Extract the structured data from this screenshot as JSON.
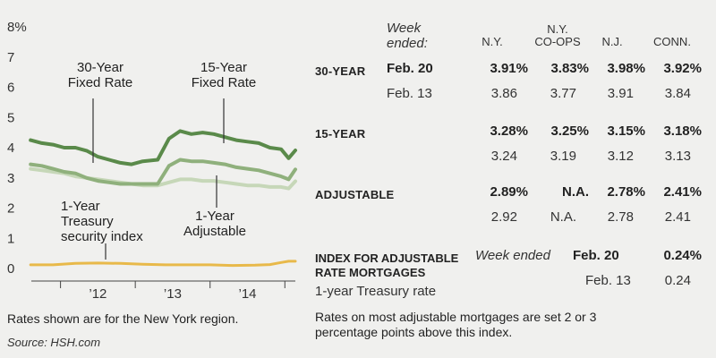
{
  "chart_data": {
    "type": "line",
    "ylim": [
      0,
      8
    ],
    "yticks": [
      "0",
      "1",
      "2",
      "3",
      "4",
      "5",
      "6",
      "7",
      "8%"
    ],
    "xlim": [
      2011.55,
      2015.2
    ],
    "xticks": [
      {
        "label": "’12",
        "x": 2012.5
      },
      {
        "label": "’13",
        "x": 2013.5
      },
      {
        "label": "’14",
        "x": 2014.5
      }
    ],
    "grid": false,
    "series": [
      {
        "name": "30-Year Fixed Rate",
        "color": "#5a8a4a",
        "points": [
          [
            2011.6,
            4.25
          ],
          [
            2011.75,
            4.15
          ],
          [
            2011.9,
            4.1
          ],
          [
            2012.05,
            4.0
          ],
          [
            2012.2,
            4.0
          ],
          [
            2012.35,
            3.9
          ],
          [
            2012.5,
            3.7
          ],
          [
            2012.65,
            3.6
          ],
          [
            2012.8,
            3.5
          ],
          [
            2012.95,
            3.45
          ],
          [
            2013.1,
            3.55
          ],
          [
            2013.3,
            3.6
          ],
          [
            2013.45,
            4.3
          ],
          [
            2013.6,
            4.55
          ],
          [
            2013.75,
            4.45
          ],
          [
            2013.9,
            4.5
          ],
          [
            2014.05,
            4.45
          ],
          [
            2014.2,
            4.35
          ],
          [
            2014.35,
            4.25
          ],
          [
            2014.5,
            4.2
          ],
          [
            2014.65,
            4.15
          ],
          [
            2014.8,
            4.0
          ],
          [
            2014.95,
            3.95
          ],
          [
            2015.05,
            3.65
          ],
          [
            2015.14,
            3.91
          ]
        ]
      },
      {
        "name": "15-Year Fixed Rate",
        "color": "#8fb07c",
        "points": [
          [
            2011.6,
            3.45
          ],
          [
            2011.75,
            3.4
          ],
          [
            2011.9,
            3.3
          ],
          [
            2012.05,
            3.2
          ],
          [
            2012.2,
            3.15
          ],
          [
            2012.35,
            3.0
          ],
          [
            2012.5,
            2.9
          ],
          [
            2012.65,
            2.85
          ],
          [
            2012.8,
            2.8
          ],
          [
            2012.95,
            2.8
          ],
          [
            2013.1,
            2.8
          ],
          [
            2013.3,
            2.8
          ],
          [
            2013.45,
            3.4
          ],
          [
            2013.6,
            3.6
          ],
          [
            2013.75,
            3.55
          ],
          [
            2013.9,
            3.55
          ],
          [
            2014.05,
            3.5
          ],
          [
            2014.2,
            3.45
          ],
          [
            2014.35,
            3.35
          ],
          [
            2014.5,
            3.3
          ],
          [
            2014.65,
            3.25
          ],
          [
            2014.8,
            3.15
          ],
          [
            2014.95,
            3.05
          ],
          [
            2015.05,
            2.95
          ],
          [
            2015.14,
            3.28
          ]
        ]
      },
      {
        "name": "1-Year Adjustable",
        "color": "#c6d7b8",
        "points": [
          [
            2011.6,
            3.3
          ],
          [
            2011.75,
            3.25
          ],
          [
            2011.9,
            3.2
          ],
          [
            2012.05,
            3.15
          ],
          [
            2012.2,
            3.05
          ],
          [
            2012.35,
            3.0
          ],
          [
            2012.5,
            2.95
          ],
          [
            2012.65,
            2.9
          ],
          [
            2012.8,
            2.85
          ],
          [
            2012.95,
            2.8
          ],
          [
            2013.1,
            2.75
          ],
          [
            2013.3,
            2.75
          ],
          [
            2013.45,
            2.85
          ],
          [
            2013.6,
            2.95
          ],
          [
            2013.75,
            2.95
          ],
          [
            2013.9,
            2.9
          ],
          [
            2014.05,
            2.9
          ],
          [
            2014.2,
            2.85
          ],
          [
            2014.35,
            2.8
          ],
          [
            2014.5,
            2.75
          ],
          [
            2014.65,
            2.75
          ],
          [
            2014.8,
            2.7
          ],
          [
            2014.95,
            2.7
          ],
          [
            2015.05,
            2.65
          ],
          [
            2015.14,
            2.89
          ]
        ]
      },
      {
        "name": "1-Year Treasury security index",
        "color": "#e8b94a",
        "points": [
          [
            2011.6,
            0.12
          ],
          [
            2011.9,
            0.12
          ],
          [
            2012.2,
            0.17
          ],
          [
            2012.5,
            0.18
          ],
          [
            2012.8,
            0.17
          ],
          [
            2013.1,
            0.14
          ],
          [
            2013.4,
            0.12
          ],
          [
            2013.7,
            0.12
          ],
          [
            2014.0,
            0.12
          ],
          [
            2014.3,
            0.1
          ],
          [
            2014.6,
            0.11
          ],
          [
            2014.8,
            0.13
          ],
          [
            2014.95,
            0.2
          ],
          [
            2015.05,
            0.24
          ],
          [
            2015.14,
            0.24
          ]
        ]
      }
    ],
    "annotations": [
      {
        "lines": [
          "30-Year",
          "Fixed Rate"
        ],
        "series": "30-Year Fixed Rate"
      },
      {
        "lines": [
          "15-Year",
          "Fixed Rate"
        ],
        "series": "15-Year Fixed Rate"
      },
      {
        "lines": [
          "1-Year",
          "Treasury",
          "security index"
        ],
        "series": "1-Year Treasury security index"
      },
      {
        "lines": [
          "1-Year",
          "Adjustable"
        ],
        "series": "1-Year Adjustable"
      }
    ]
  },
  "chart_note": "Rates shown are for the New York region.",
  "source": "Source: HSH.com",
  "table": {
    "header": {
      "week_ended_line1": "Week",
      "week_ended_line2": "ended:",
      "ny": "N.Y.",
      "coops_line1": "N.Y.",
      "coops_line2": "CO-OPS",
      "nj": "N.J.",
      "conn": "CONN."
    },
    "rows": [
      {
        "label": "30-YEAR",
        "current": {
          "week": "Feb. 20",
          "values": [
            "3.91%",
            "3.83%",
            "3.98%",
            "3.92%"
          ]
        },
        "previous": {
          "week": "Feb. 13",
          "values": [
            "3.86",
            "3.77",
            "3.91",
            "3.84"
          ]
        }
      },
      {
        "label": "15-YEAR",
        "current": {
          "week": "",
          "values": [
            "3.28%",
            "3.25%",
            "3.15%",
            "3.18%"
          ]
        },
        "previous": {
          "week": "",
          "values": [
            "3.24",
            "3.19",
            "3.12",
            "3.13"
          ]
        }
      },
      {
        "label": "ADJUSTABLE",
        "current": {
          "week": "",
          "values": [
            "2.89%",
            "N.A.",
            "2.78%",
            "2.41%"
          ]
        },
        "previous": {
          "week": "",
          "values": [
            "2.92",
            "N.A.",
            "2.78",
            "2.41"
          ]
        }
      }
    ],
    "index": {
      "title_line1": "INDEX FOR ADJUSTABLE",
      "title_line2": "RATE MORTGAGES",
      "subtitle": "1-year Treasury rate",
      "week_ended": "Week ended",
      "current_week": "Feb. 20",
      "current_value": "0.24%",
      "previous_week": "Feb. 13",
      "previous_value": "0.24"
    },
    "footnote_line1": "Rates on most adjustable mortgages are set 2 or 3",
    "footnote_line2": "percentage points above this index."
  }
}
